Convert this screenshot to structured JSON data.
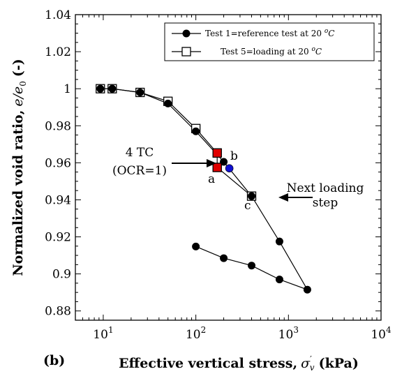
{
  "panel_label": "(b)",
  "chart_data": {
    "type": "scatter",
    "xlabel": "Effective vertical stress, σ′v (kPa)",
    "xlabel_main": "Effective vertical stress,",
    "xlabel_symbol": "σ",
    "xlabel_sup": "′",
    "xlabel_sub": "v",
    "xlabel_unit": "(kPa)",
    "ylabel": "Normalized void ratio, e/e0 (-)",
    "ylabel_main": "Normalized void ratio,",
    "ylabel_symbol": "e/e",
    "ylabel_sub": "0",
    "ylabel_unit": "(-)",
    "x_scale": "log",
    "xlim": [
      5,
      10000
    ],
    "ylim": [
      0.875,
      1.04
    ],
    "x_ticks": [
      {
        "value": 10,
        "base": "10",
        "exp": "1"
      },
      {
        "value": 100,
        "base": "10",
        "exp": "2"
      },
      {
        "value": 1000,
        "base": "10",
        "exp": "3"
      },
      {
        "value": 10000,
        "base": "10",
        "exp": "4"
      }
    ],
    "y_ticks": [
      {
        "value": 0.88,
        "label": "0.88"
      },
      {
        "value": 0.9,
        "label": "0.9"
      },
      {
        "value": 0.92,
        "label": "0.92"
      },
      {
        "value": 0.94,
        "label": "0.94"
      },
      {
        "value": 0.96,
        "label": "0.96"
      },
      {
        "value": 0.98,
        "label": "0.98"
      },
      {
        "value": 1.0,
        "label": "1"
      },
      {
        "value": 1.02,
        "label": "1.02"
      },
      {
        "value": 1.04,
        "label": "1.04"
      }
    ],
    "grid": false,
    "legend_position": "top-right",
    "series": [
      {
        "name": "Test 1=reference test at 20 °C",
        "legend_main": "Test 1=reference test at 20 ",
        "legend_sup": "o",
        "legend_unit": "C",
        "marker": "filled-circle",
        "color": "#000000",
        "points": [
          {
            "x": 9.3,
            "y": 1.0
          },
          {
            "x": 12.5,
            "y": 1.0
          },
          {
            "x": 25,
            "y": 0.998
          },
          {
            "x": 50,
            "y": 0.992
          },
          {
            "x": 100,
            "y": 0.977
          },
          {
            "x": 200,
            "y": 0.9605
          },
          {
            "x": 400,
            "y": 0.942
          },
          {
            "x": 800,
            "y": 0.9175
          },
          {
            "x": 1600,
            "y": 0.8915
          },
          {
            "x": 800,
            "y": 0.897
          },
          {
            "x": 400,
            "y": 0.9045
          },
          {
            "x": 200,
            "y": 0.9085
          },
          {
            "x": 100,
            "y": 0.9148
          }
        ]
      },
      {
        "name": "Test 5=loading at 20 °C",
        "legend_main": "Test 5=loading at 20 ",
        "legend_sup": "o",
        "legend_unit": "C",
        "marker": "open-square",
        "color": "#000000",
        "points": [
          {
            "x": 9.3,
            "y": 1.0
          },
          {
            "x": 12.5,
            "y": 1.0
          },
          {
            "x": 25,
            "y": 0.998
          },
          {
            "x": 50,
            "y": 0.9932
          },
          {
            "x": 100,
            "y": 0.9785
          },
          {
            "x": 170,
            "y": 0.9653
          },
          {
            "x": 170,
            "y": 0.9575
          },
          {
            "x": 400,
            "y": 0.942
          }
        ]
      }
    ],
    "highlight_points": [
      {
        "x": 170,
        "y": 0.9653,
        "color": "#e00000",
        "shape": "square"
      },
      {
        "x": 170,
        "y": 0.9575,
        "color": "#e00000",
        "shape": "square"
      },
      {
        "x": 230,
        "y": 0.957,
        "color": "#1010d0",
        "shape": "circle"
      }
    ],
    "annotations": {
      "tc_line1": "4 TC",
      "tc_line2": "(OCR=1)",
      "label_a": "a",
      "label_b": "b",
      "label_c": "c",
      "next_line1": "Next loading",
      "next_line2": "step"
    }
  }
}
